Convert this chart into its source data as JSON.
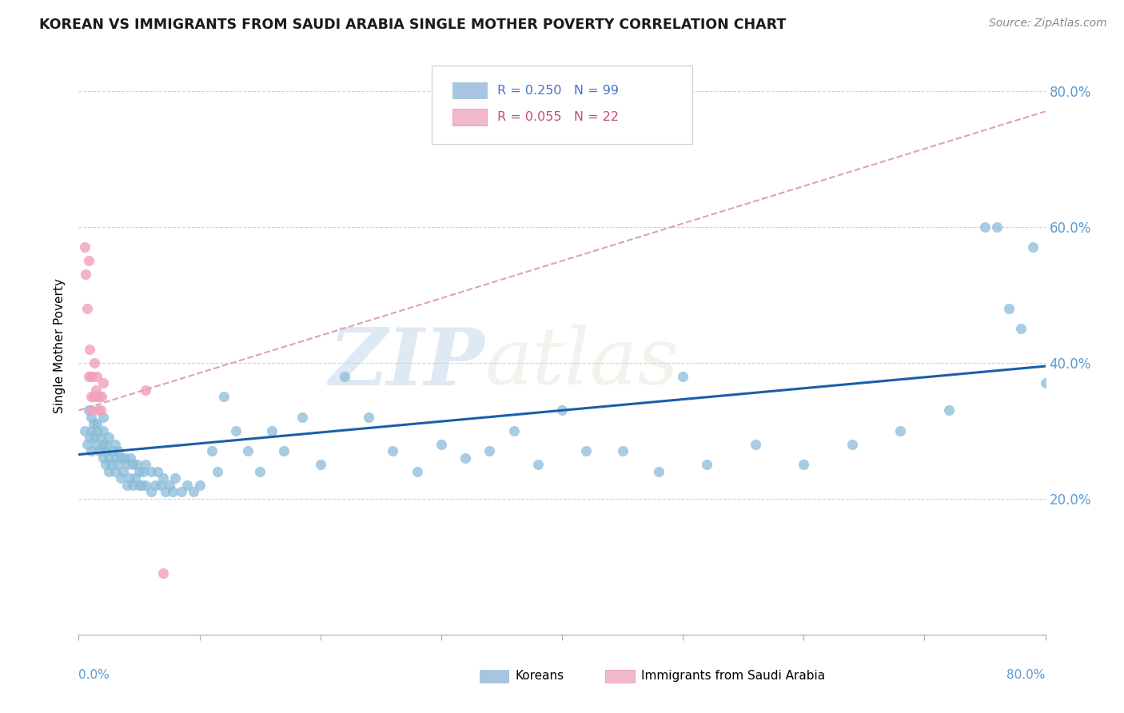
{
  "title": "KOREAN VS IMMIGRANTS FROM SAUDI ARABIA SINGLE MOTHER POVERTY CORRELATION CHART",
  "source": "Source: ZipAtlas.com",
  "ylabel": "Single Mother Poverty",
  "legend_korean": {
    "R": 0.25,
    "N": 99,
    "color": "#a8c4e0"
  },
  "legend_saudi": {
    "R": 0.055,
    "N": 22,
    "color": "#f2b8cb"
  },
  "korean_color": "#8bbcd8",
  "saudi_color": "#f2a0bc",
  "trend_korean_color": "#1a5fa8",
  "trend_saudi_color": "#e0a0b8",
  "watermark_zip": "ZIP",
  "watermark_atlas": "atlas",
  "background_color": "#ffffff",
  "grid_color": "#d0d0d0",
  "korean_scatter_x": [
    0.005,
    0.007,
    0.008,
    0.009,
    0.01,
    0.01,
    0.01,
    0.012,
    0.013,
    0.015,
    0.015,
    0.015,
    0.017,
    0.018,
    0.02,
    0.02,
    0.02,
    0.02,
    0.022,
    0.022,
    0.023,
    0.025,
    0.025,
    0.025,
    0.027,
    0.028,
    0.03,
    0.03,
    0.03,
    0.032,
    0.033,
    0.035,
    0.035,
    0.037,
    0.038,
    0.04,
    0.04,
    0.042,
    0.043,
    0.045,
    0.045,
    0.047,
    0.048,
    0.05,
    0.05,
    0.052,
    0.053,
    0.055,
    0.055,
    0.06,
    0.06,
    0.063,
    0.065,
    0.068,
    0.07,
    0.072,
    0.075,
    0.078,
    0.08,
    0.085,
    0.09,
    0.095,
    0.1,
    0.11,
    0.115,
    0.12,
    0.13,
    0.14,
    0.15,
    0.16,
    0.17,
    0.185,
    0.2,
    0.22,
    0.24,
    0.26,
    0.28,
    0.3,
    0.32,
    0.34,
    0.36,
    0.38,
    0.4,
    0.42,
    0.45,
    0.48,
    0.5,
    0.52,
    0.56,
    0.6,
    0.64,
    0.68,
    0.72,
    0.75,
    0.76,
    0.77,
    0.78,
    0.79,
    0.8
  ],
  "korean_scatter_y": [
    0.3,
    0.28,
    0.33,
    0.29,
    0.27,
    0.3,
    0.32,
    0.31,
    0.29,
    0.28,
    0.3,
    0.31,
    0.27,
    0.29,
    0.26,
    0.28,
    0.3,
    0.32,
    0.25,
    0.27,
    0.28,
    0.24,
    0.26,
    0.29,
    0.25,
    0.27,
    0.24,
    0.26,
    0.28,
    0.25,
    0.27,
    0.23,
    0.26,
    0.24,
    0.26,
    0.22,
    0.25,
    0.23,
    0.26,
    0.22,
    0.25,
    0.23,
    0.25,
    0.22,
    0.24,
    0.22,
    0.24,
    0.22,
    0.25,
    0.21,
    0.24,
    0.22,
    0.24,
    0.22,
    0.23,
    0.21,
    0.22,
    0.21,
    0.23,
    0.21,
    0.22,
    0.21,
    0.22,
    0.27,
    0.24,
    0.35,
    0.3,
    0.27,
    0.24,
    0.3,
    0.27,
    0.32,
    0.25,
    0.38,
    0.32,
    0.27,
    0.24,
    0.28,
    0.26,
    0.27,
    0.3,
    0.25,
    0.33,
    0.27,
    0.27,
    0.24,
    0.38,
    0.25,
    0.28,
    0.25,
    0.28,
    0.3,
    0.33,
    0.6,
    0.6,
    0.48,
    0.45,
    0.57,
    0.37
  ],
  "saudi_scatter_x": [
    0.005,
    0.006,
    0.007,
    0.008,
    0.008,
    0.009,
    0.01,
    0.01,
    0.01,
    0.011,
    0.012,
    0.013,
    0.014,
    0.015,
    0.015,
    0.016,
    0.017,
    0.018,
    0.019,
    0.02,
    0.055,
    0.07
  ],
  "saudi_scatter_y": [
    0.57,
    0.53,
    0.48,
    0.55,
    0.38,
    0.42,
    0.38,
    0.35,
    0.33,
    0.38,
    0.35,
    0.4,
    0.36,
    0.38,
    0.35,
    0.33,
    0.35,
    0.33,
    0.35,
    0.37,
    0.36,
    0.09
  ],
  "xlim": [
    0.0,
    0.8
  ],
  "ylim": [
    0.0,
    0.85
  ],
  "korean_trend_x0": 0.0,
  "korean_trend_y0": 0.265,
  "korean_trend_x1": 0.8,
  "korean_trend_y1": 0.395,
  "saudi_trend_x0": 0.0,
  "saudi_trend_y0": 0.33,
  "saudi_trend_x1": 0.8,
  "saudi_trend_y1": 0.77
}
